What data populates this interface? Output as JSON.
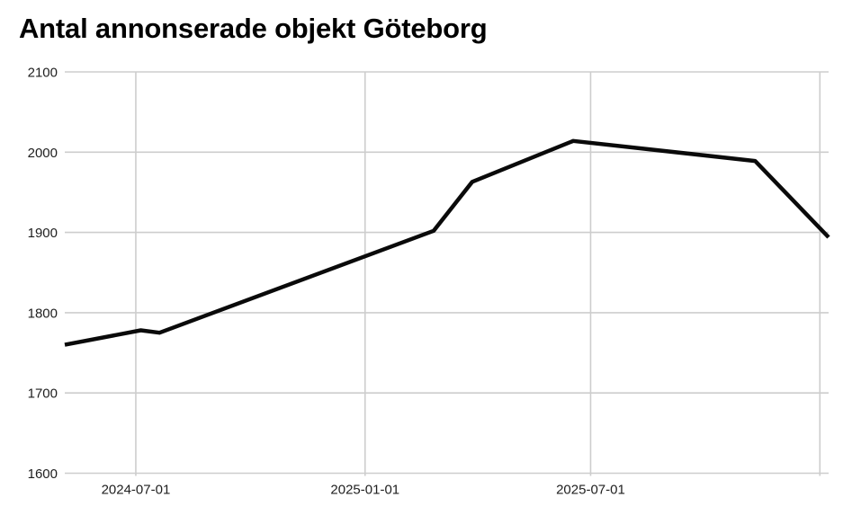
{
  "page": {
    "title": "Antal annonserade objekt Göteborg"
  },
  "colors": {
    "background": "#ffffff",
    "title_text": "#000000",
    "axis_label_text": "#202020",
    "gridline": "#cdcdcd",
    "series_line": "#0a0a0a"
  },
  "chart_data": {
    "type": "line",
    "title": "Antal annonserade objekt Göteborg",
    "xlabel": "",
    "ylabel": "",
    "grid": true,
    "legend": false,
    "ylim": [
      1600,
      2100
    ],
    "y_ticks": [
      {
        "value": 1600,
        "label": "1600"
      },
      {
        "value": 1700,
        "label": "1700"
      },
      {
        "value": 1800,
        "label": "1800"
      },
      {
        "value": 1900,
        "label": "1900"
      },
      {
        "value": 2000,
        "label": "2000"
      },
      {
        "value": 2100,
        "label": "2100"
      }
    ],
    "xlim": [
      "2024-05-05",
      "2026-01-08"
    ],
    "x_ticks": [
      {
        "date": "2024-07-01",
        "label": "2024-07-01"
      },
      {
        "date": "2025-01-01",
        "label": "2025-01-01"
      },
      {
        "date": "2025-07-01",
        "label": "2025-07-01"
      },
      {
        "date": "2026-01-01",
        "label": ""
      }
    ],
    "series": [
      {
        "name": "Antal annonserade objekt",
        "points": [
          {
            "date": "2024-05-05",
            "value": 1760
          },
          {
            "date": "2024-07-05",
            "value": 1778
          },
          {
            "date": "2024-07-20",
            "value": 1775
          },
          {
            "date": "2025-02-25",
            "value": 1902
          },
          {
            "date": "2025-03-28",
            "value": 1963
          },
          {
            "date": "2025-06-17",
            "value": 2014
          },
          {
            "date": "2025-11-10",
            "value": 1989
          },
          {
            "date": "2026-01-08",
            "value": 1894
          }
        ]
      }
    ]
  }
}
